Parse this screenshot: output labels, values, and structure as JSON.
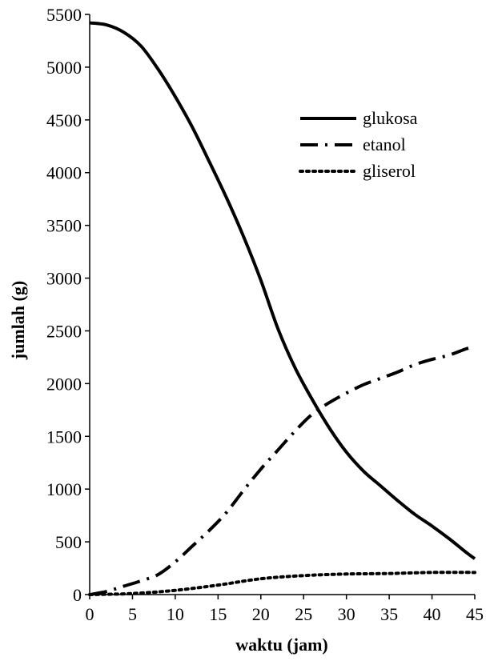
{
  "chart_data": {
    "type": "line",
    "title": "",
    "xlabel": "waktu (jam)",
    "ylabel": "jumlah (g)",
    "xlim": [
      0,
      45
    ],
    "ylim": [
      0,
      5500
    ],
    "xticks": [
      0,
      5,
      10,
      15,
      20,
      25,
      30,
      35,
      40,
      45
    ],
    "yticks": [
      0,
      500,
      1000,
      1500,
      2000,
      2500,
      3000,
      3500,
      4000,
      4500,
      5000,
      5500
    ],
    "grid": false,
    "legend_position": "top-right",
    "series": [
      {
        "name": "glukosa",
        "style": "solid",
        "points": [
          [
            0,
            5420
          ],
          [
            2,
            5400
          ],
          [
            4,
            5330
          ],
          [
            6,
            5200
          ],
          [
            8,
            4980
          ],
          [
            10,
            4720
          ],
          [
            12,
            4430
          ],
          [
            14,
            4100
          ],
          [
            16,
            3760
          ],
          [
            18,
            3390
          ],
          [
            20,
            2980
          ],
          [
            22,
            2520
          ],
          [
            24,
            2150
          ],
          [
            26,
            1850
          ],
          [
            28,
            1580
          ],
          [
            30,
            1350
          ],
          [
            32,
            1170
          ],
          [
            34,
            1030
          ],
          [
            36,
            890
          ],
          [
            38,
            760
          ],
          [
            40,
            650
          ],
          [
            42,
            530
          ],
          [
            44,
            400
          ],
          [
            45,
            340
          ]
        ]
      },
      {
        "name": "etanol",
        "style": "dash-dot",
        "points": [
          [
            0,
            0
          ],
          [
            2,
            30
          ],
          [
            4,
            80
          ],
          [
            6,
            130
          ],
          [
            8,
            190
          ],
          [
            10,
            310
          ],
          [
            12,
            460
          ],
          [
            14,
            610
          ],
          [
            16,
            780
          ],
          [
            18,
            990
          ],
          [
            20,
            1190
          ],
          [
            22,
            1370
          ],
          [
            24,
            1550
          ],
          [
            26,
            1710
          ],
          [
            28,
            1820
          ],
          [
            30,
            1910
          ],
          [
            32,
            1990
          ],
          [
            34,
            2050
          ],
          [
            36,
            2110
          ],
          [
            38,
            2180
          ],
          [
            40,
            2230
          ],
          [
            42,
            2270
          ],
          [
            44,
            2330
          ],
          [
            45,
            2350
          ]
        ]
      },
      {
        "name": "gliserol",
        "style": "dotted",
        "points": [
          [
            0,
            0
          ],
          [
            5,
            10
          ],
          [
            10,
            40
          ],
          [
            15,
            90
          ],
          [
            20,
            150
          ],
          [
            25,
            180
          ],
          [
            30,
            195
          ],
          [
            35,
            200
          ],
          [
            40,
            210
          ],
          [
            45,
            210
          ]
        ]
      }
    ]
  }
}
